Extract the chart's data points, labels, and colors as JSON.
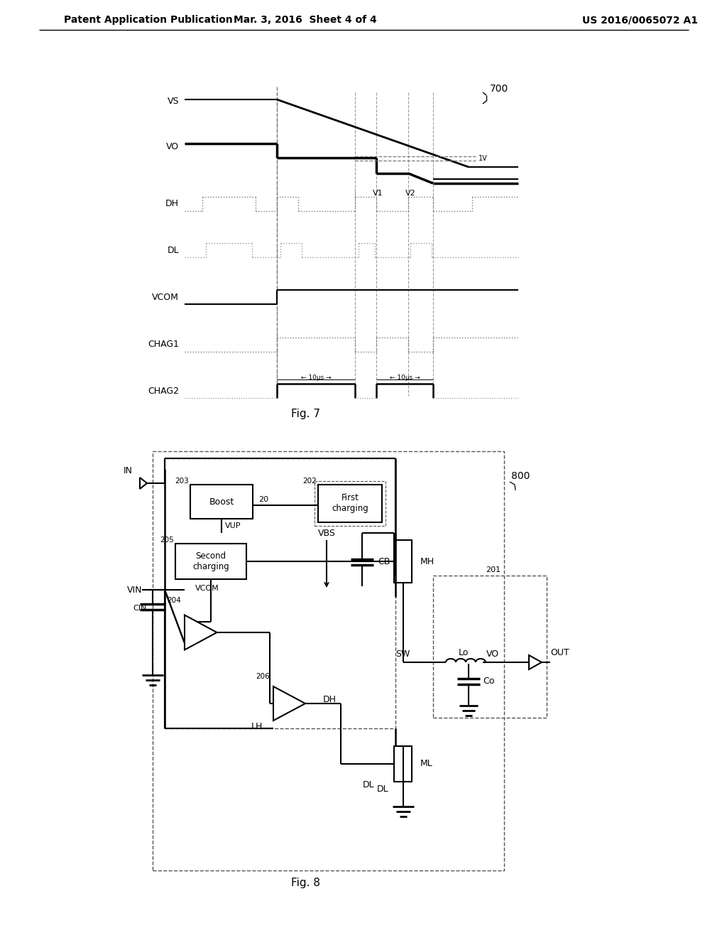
{
  "header_left": "Patent Application Publication",
  "header_center": "Mar. 3, 2016  Sheet 4 of 4",
  "header_right": "US 2016/0065072 A1",
  "fig7_label": "Fig. 7",
  "fig8_label": "Fig. 8",
  "fig7_ref": "700",
  "fig8_ref": "800",
  "background": "#ffffff"
}
